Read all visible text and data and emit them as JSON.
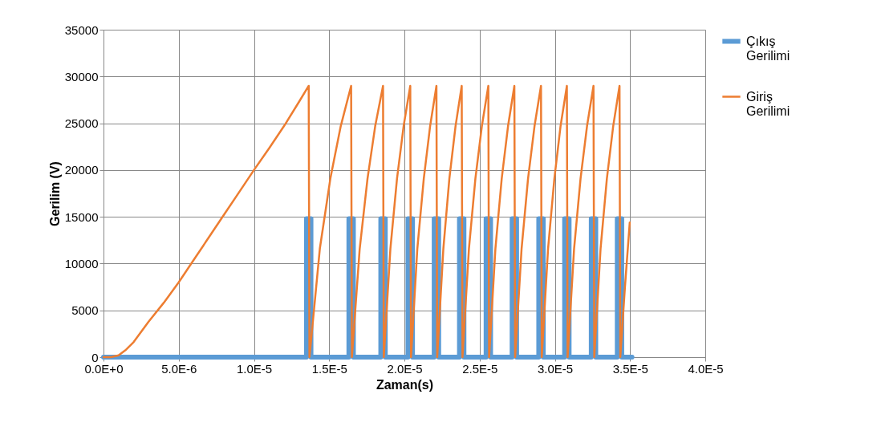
{
  "chart_data": {
    "type": "line",
    "xlabel": "Zaman(s)",
    "ylabel": "Gerilim (V)",
    "xlim": [
      0,
      4e-05
    ],
    "ylim": [
      0,
      35000
    ],
    "xticks": [
      {
        "value": 0,
        "label": "0.0E+0"
      },
      {
        "value": 5e-06,
        "label": "5.0E-6"
      },
      {
        "value": 1e-05,
        "label": "1.0E-5"
      },
      {
        "value": 1.5e-05,
        "label": "1.5E-5"
      },
      {
        "value": 2e-05,
        "label": "2.0E-5"
      },
      {
        "value": 2.5e-05,
        "label": "2.5E-5"
      },
      {
        "value": 3e-05,
        "label": "3.0E-5"
      },
      {
        "value": 3.5e-05,
        "label": "3.5E-5"
      },
      {
        "value": 4e-05,
        "label": "4.0E-5"
      }
    ],
    "yticks": [
      0,
      5000,
      10000,
      15000,
      20000,
      25000,
      30000,
      35000
    ],
    "grid": true,
    "legend": "right",
    "marker": "none",
    "line_style": "solid",
    "series": [
      {
        "name": "Çıkış Gerilimi",
        "color": "#5b9bd5",
        "x": [
          0,
          1.349e-05,
          1.349e-05,
          1.379e-05,
          1.379e-05,
          1.631e-05,
          1.631e-05,
          1.661e-05,
          1.661e-05,
          1.843e-05,
          1.843e-05,
          1.873e-05,
          1.873e-05,
          2.024e-05,
          2.024e-05,
          2.054e-05,
          2.054e-05,
          2.198e-05,
          2.198e-05,
          2.228e-05,
          2.228e-05,
          2.366e-05,
          2.366e-05,
          2.396e-05,
          2.396e-05,
          2.543e-05,
          2.543e-05,
          2.573e-05,
          2.573e-05,
          2.716e-05,
          2.716e-05,
          2.746e-05,
          2.746e-05,
          2.893e-05,
          2.893e-05,
          2.923e-05,
          2.923e-05,
          3.065e-05,
          3.065e-05,
          3.095e-05,
          3.095e-05,
          3.242e-05,
          3.242e-05,
          3.272e-05,
          3.272e-05,
          3.415e-05,
          3.415e-05,
          3.445e-05,
          3.445e-05,
          3.513e-05
        ],
        "values": [
          0,
          0,
          14800,
          14800,
          0,
          0,
          14800,
          14800,
          0,
          0,
          14800,
          14800,
          0,
          0,
          14800,
          14800,
          0,
          0,
          14800,
          14800,
          0,
          0,
          14800,
          14800,
          0,
          0,
          14800,
          14800,
          0,
          0,
          14800,
          14800,
          0,
          0,
          14800,
          14800,
          0,
          0,
          14800,
          14800,
          0,
          0,
          14800,
          14800,
          0,
          0,
          14800,
          14800,
          0,
          0
        ]
      },
      {
        "name": "Giriş Gerilimi",
        "color": "#ed7d31",
        "x": [
          0,
          5e-07,
          1e-06,
          1.5e-06,
          2e-06,
          3e-06,
          4e-06,
          5e-06,
          6e-06,
          7e-06,
          8e-06,
          9e-06,
          1e-05,
          1.1e-05,
          1.2e-05,
          1.3e-05,
          1.364e-05,
          1.369e-05,
          1.438e-05,
          1.508e-05,
          1.577e-05,
          1.646e-05,
          1.651e-05,
          1.703e-05,
          1.755e-05,
          1.806e-05,
          1.858e-05,
          1.863e-05,
          1.907e-05,
          1.951e-05,
          1.995e-05,
          2.039e-05,
          2.044e-05,
          2.086e-05,
          2.129e-05,
          2.171e-05,
          2.213e-05,
          2.218e-05,
          2.259e-05,
          2.299e-05,
          2.34e-05,
          2.381e-05,
          2.386e-05,
          2.429e-05,
          2.472e-05,
          2.515e-05,
          2.558e-05,
          2.563e-05,
          2.605e-05,
          2.647e-05,
          2.689e-05,
          2.731e-05,
          2.736e-05,
          2.779e-05,
          2.822e-05,
          2.865e-05,
          2.908e-05,
          2.913e-05,
          2.955e-05,
          2.997e-05,
          3.038e-05,
          3.08e-05,
          3.085e-05,
          3.128e-05,
          3.171e-05,
          3.214e-05,
          3.257e-05,
          3.262e-05,
          3.304e-05,
          3.346e-05,
          3.388e-05,
          3.43e-05,
          3.435e-05,
          3.466e-05,
          3.498e-05
        ],
        "values": [
          0,
          0,
          200,
          800,
          1600,
          3800,
          5800,
          8000,
          10400,
          12800,
          15200,
          17600,
          20000,
          22300,
          24700,
          27300,
          29000,
          0,
          11600,
          19100,
          24700,
          29000,
          0,
          11600,
          19100,
          24700,
          29000,
          0,
          11600,
          19100,
          24700,
          29000,
          0,
          11600,
          19100,
          24700,
          29000,
          0,
          11600,
          19100,
          24700,
          29000,
          0,
          11600,
          19100,
          24700,
          29000,
          0,
          11600,
          19100,
          24700,
          29000,
          0,
          11600,
          19100,
          24700,
          29000,
          0,
          11600,
          19100,
          24700,
          29000,
          0,
          11600,
          19100,
          24700,
          29000,
          0,
          11600,
          19100,
          24700,
          29000,
          0,
          7500,
          14400
        ]
      }
    ]
  }
}
